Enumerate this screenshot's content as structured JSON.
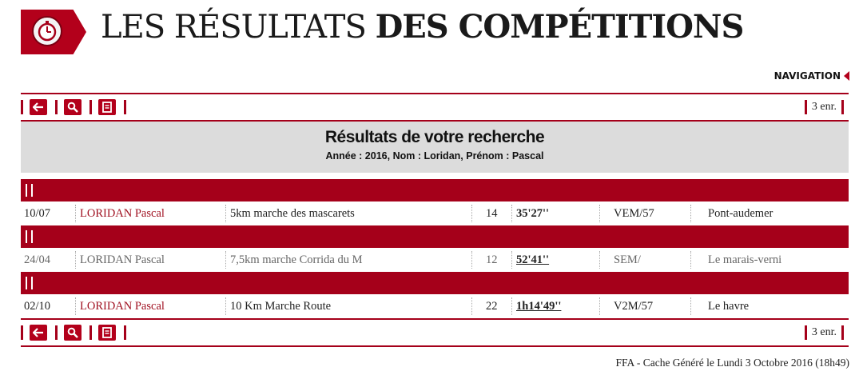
{
  "header": {
    "title_light": "LES RÉSULTATS",
    "title_bold": "DES COMPÉTITIONS",
    "logo_icon": "stopwatch-icon"
  },
  "navigation_label": "NAVIGATION",
  "toolbar": {
    "back_icon": "back-arrow-icon",
    "search_icon": "search-icon",
    "print_icon": "print-icon",
    "count": "3 enr."
  },
  "search": {
    "title": "Résultats de votre recherche",
    "criteria": "Année : 2016, Nom : Loridan, Prénom : Pascal"
  },
  "results": [
    {
      "date": "10/07",
      "name": "LORIDAN Pascal",
      "event": "5km marche des mascarets",
      "place": "14",
      "perf": "35'27''",
      "category": "VEM/57",
      "city": "Pont-audemer",
      "style": "normal"
    },
    {
      "date": "24/04",
      "name": "LORIDAN Pascal",
      "event": "7,5km marche Corrida du M",
      "place": "12",
      "perf": "52'41''",
      "category": "SEM/",
      "city": "Le marais-verni",
      "style": "grey"
    },
    {
      "date": "02/10",
      "name": "LORIDAN Pascal",
      "event": "10 Km Marche Route",
      "place": "22",
      "perf": "1h14'49''",
      "category": "V2M/57",
      "city": "Le havre",
      "style": "normal"
    }
  ],
  "footer": "FFA - Cache Généré le Lundi 3 Octobre 2016 (18h49)",
  "colors": {
    "accent": "#a5001a",
    "panel": "#dcdcdc"
  }
}
